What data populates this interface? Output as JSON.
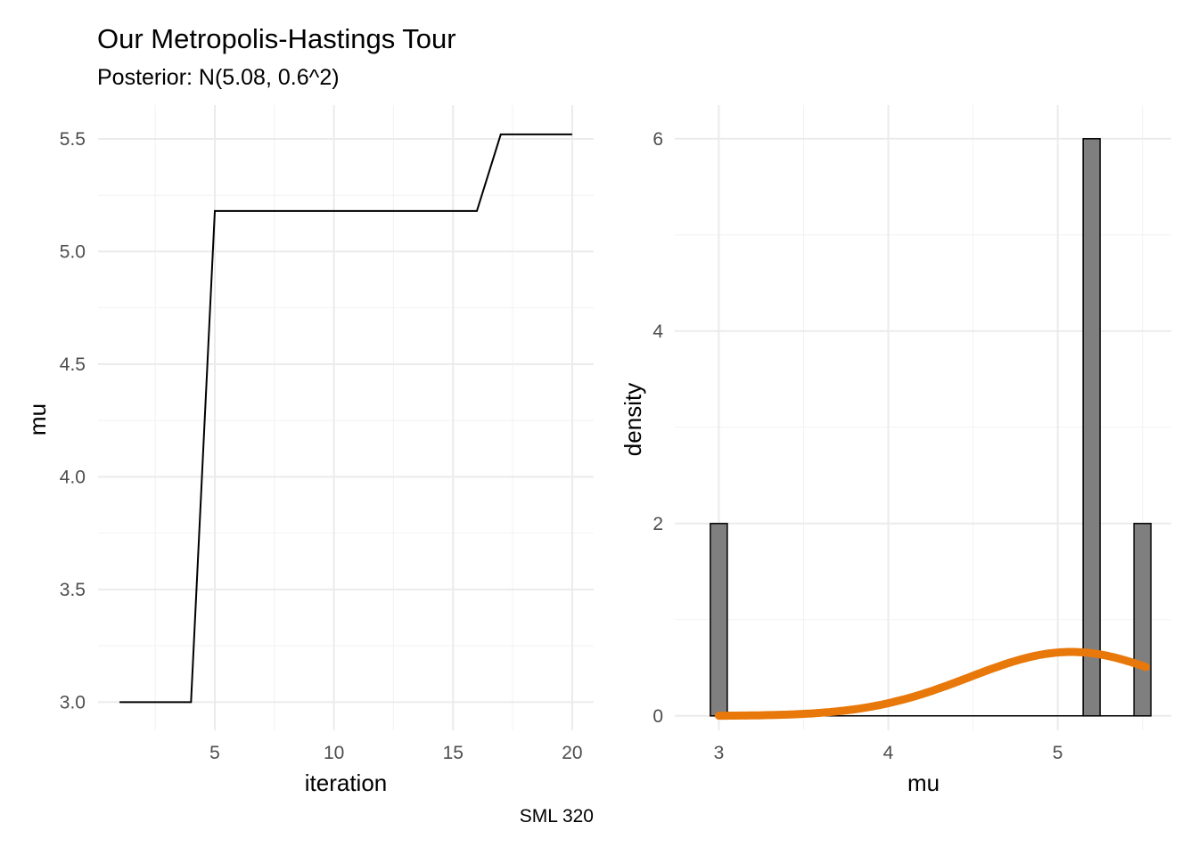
{
  "title": "Our Metropolis-Hastings Tour",
  "subtitle": "Posterior: N(5.08, 0.6^2)",
  "caption": "SML 320",
  "chart_data": [
    {
      "type": "line",
      "xlabel": "iteration",
      "ylabel": "mu",
      "xlim": [
        0.1,
        20.9
      ],
      "ylim": [
        2.875,
        5.65
      ],
      "x_ticks": [
        "5",
        "10",
        "15",
        "20"
      ],
      "y_ticks": [
        "3.0",
        "3.5",
        "4.0",
        "4.5",
        "5.0",
        "5.5"
      ],
      "grid": true,
      "line_color": "#000000",
      "x": [
        1,
        2,
        3,
        4,
        5,
        6,
        7,
        8,
        9,
        10,
        11,
        12,
        13,
        14,
        15,
        16,
        17,
        18,
        19,
        20
      ],
      "y": [
        3.0,
        3.0,
        3.0,
        3.0,
        5.18,
        5.18,
        5.18,
        5.18,
        5.18,
        5.18,
        5.18,
        5.18,
        5.18,
        5.18,
        5.18,
        5.18,
        5.52,
        5.52,
        5.52,
        5.52
      ]
    },
    {
      "type": "bar",
      "xlabel": "mu",
      "ylabel": "density",
      "xlim": [
        2.74,
        5.67
      ],
      "ylim": [
        -0.15,
        6.35
      ],
      "x_ticks": [
        "3",
        "4",
        "5"
      ],
      "y_ticks": [
        "0",
        "2",
        "4",
        "6"
      ],
      "grid": true,
      "bar_fill": "#7f7f7f",
      "bar_stroke": "#000000",
      "bins": [
        {
          "x0": 2.95,
          "x1": 3.05,
          "density": 2
        },
        {
          "x0": 5.15,
          "x1": 5.25,
          "density": 6
        },
        {
          "x0": 5.45,
          "x1": 5.55,
          "density": 2
        }
      ],
      "density_curve": {
        "mean": 5.08,
        "sd": 0.6,
        "from": 3.0,
        "to": 5.52,
        "color": "#e8780a"
      }
    }
  ]
}
